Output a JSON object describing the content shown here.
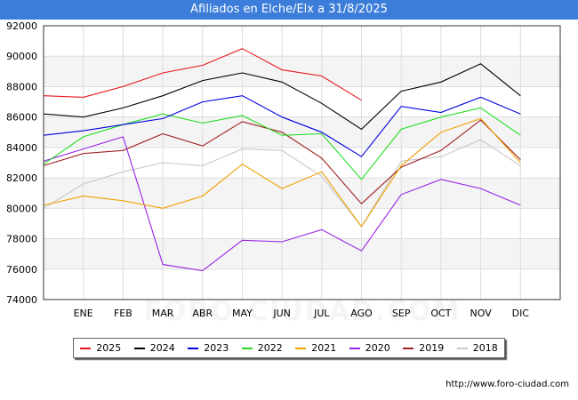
{
  "header": {
    "title": "Afiliados en Elche/Elx a 31/8/2025"
  },
  "footer": {
    "url": "http://www.foro-ciudad.com"
  },
  "watermark": "FORO-CIUDAD.COM",
  "chart_data": {
    "type": "line",
    "title": "Afiliados en Elche/Elx a 31/8/2025",
    "categories": [
      "",
      "ENE",
      "FEB",
      "MAR",
      "ABR",
      "MAY",
      "JUN",
      "JUL",
      "AGO",
      "SEP",
      "OCT",
      "NOV",
      "DIC"
    ],
    "y_ticks": [
      74000,
      76000,
      78000,
      80000,
      82000,
      84000,
      86000,
      88000,
      90000,
      92000
    ],
    "ylim": [
      74000,
      92000
    ],
    "grid": true,
    "legend_position": "bottom",
    "series": [
      {
        "name": "2025",
        "color": "#e8141c",
        "values": [
          87400,
          87300,
          88000,
          88900,
          89400,
          90500,
          89100,
          88700,
          87100,
          null,
          null,
          null,
          null
        ]
      },
      {
        "name": "2024",
        "color": "#000000",
        "values": [
          86200,
          86000,
          86600,
          87400,
          88400,
          88900,
          88300,
          86900,
          85200,
          87700,
          88300,
          89500,
          87400
        ]
      },
      {
        "name": "2023",
        "color": "#0000e0",
        "values": [
          84800,
          85100,
          85500,
          85900,
          87000,
          87400,
          86000,
          85000,
          83400,
          86700,
          86300,
          87300,
          86200
        ]
      },
      {
        "name": "2022",
        "color": "#22dd22",
        "values": [
          82900,
          84700,
          85500,
          86200,
          85600,
          86100,
          84800,
          84900,
          81900,
          85200,
          86000,
          86600,
          84800
        ]
      },
      {
        "name": "2021",
        "color": "#f0a000",
        "values": [
          80200,
          80800,
          80500,
          80000,
          80800,
          82900,
          81300,
          82400,
          78800,
          82800,
          85000,
          85900,
          83000
        ]
      },
      {
        "name": "2020",
        "color": "#9a22e8",
        "values": [
          83100,
          83900,
          84700,
          76300,
          75900,
          77900,
          77800,
          78600,
          77200,
          80900,
          81900,
          81300,
          80200
        ]
      },
      {
        "name": "2019",
        "color": "#a02020",
        "values": [
          82800,
          83600,
          83800,
          84900,
          84100,
          85700,
          85000,
          83300,
          80300,
          82700,
          83800,
          85800,
          83200
        ]
      },
      {
        "name": "2018",
        "color": "#c8c8c8",
        "values": [
          80000,
          81600,
          82400,
          83000,
          82800,
          83900,
          83800,
          82100,
          78800,
          83100,
          83400,
          84500,
          82800
        ]
      }
    ]
  }
}
